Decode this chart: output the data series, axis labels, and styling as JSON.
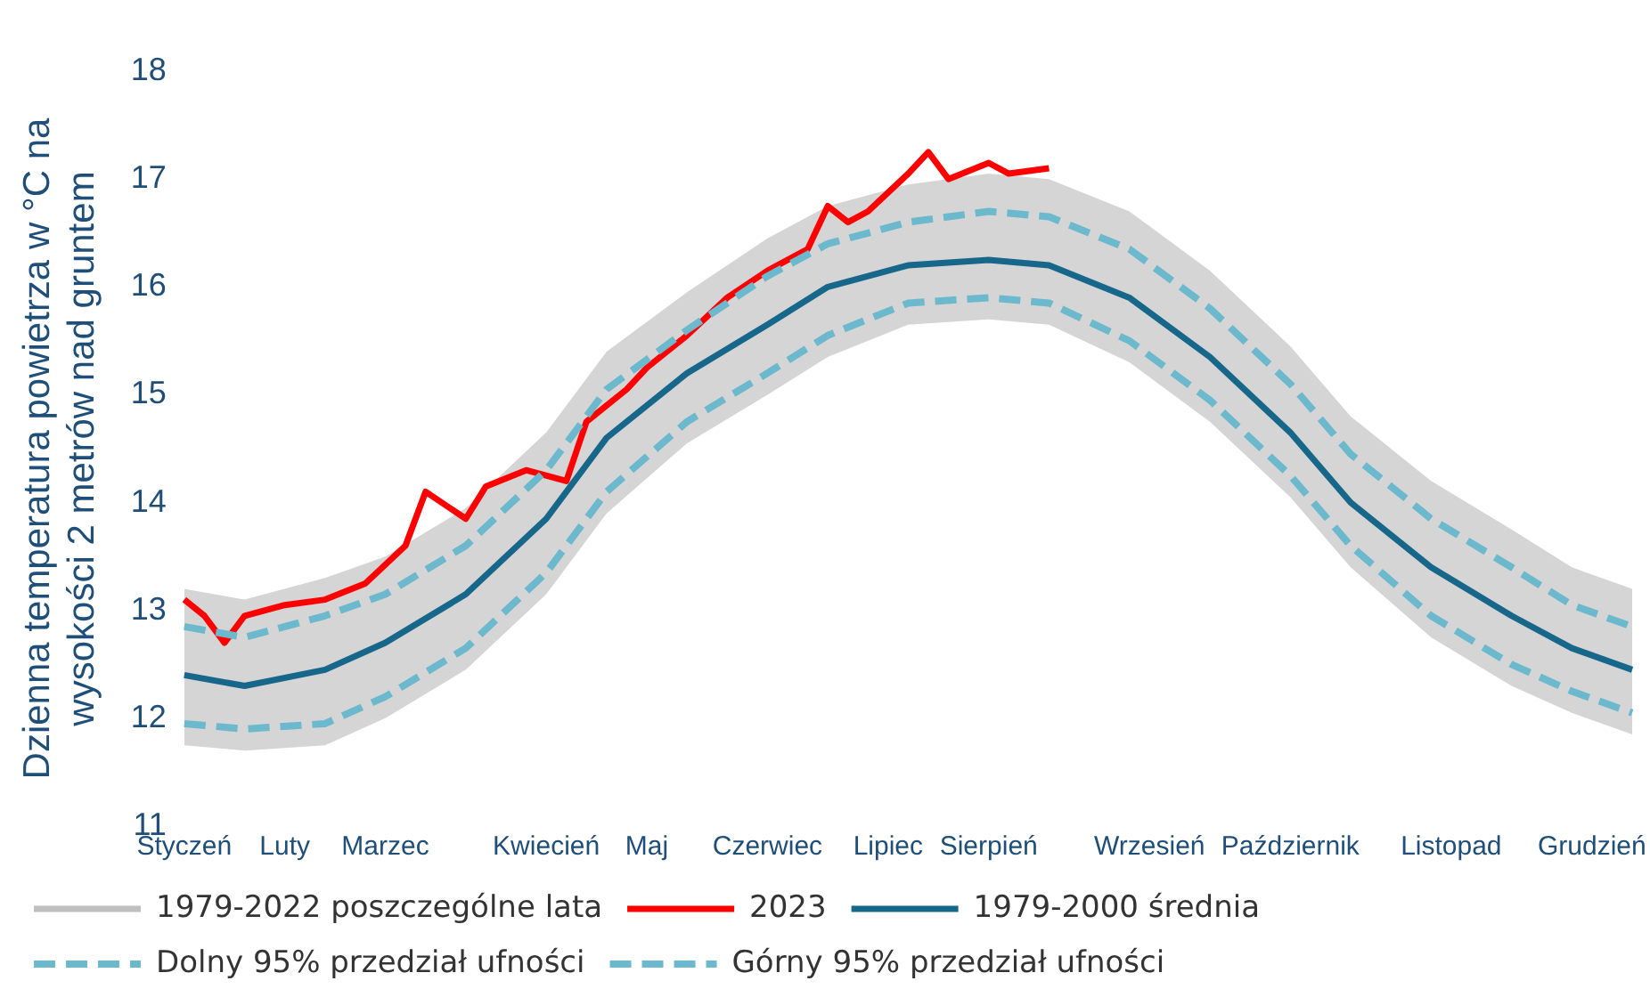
{
  "chart_data": {
    "type": "line",
    "ylabel": "Dzienna temperatura powietrza w °C na wysokości 2 metrów nad gruntem",
    "categories": [
      "Styczeń",
      null,
      null,
      null,
      null,
      "Luty",
      null,
      null,
      null,
      null,
      "Marzec",
      null,
      null,
      null,
      null,
      null,
      null,
      null,
      "Kwiecień",
      null,
      null,
      null,
      null,
      "Maj",
      null,
      null,
      null,
      null,
      null,
      "Czerwiec",
      null,
      null,
      null,
      null,
      null,
      "Lipiec",
      null,
      null,
      null,
      null,
      "Sierpień",
      null,
      null,
      null,
      null,
      null,
      null,
      null,
      "Wrzesień",
      null,
      null,
      null,
      null,
      null,
      null,
      "Październik",
      null,
      null,
      null,
      null,
      null,
      null,
      null,
      "Listopad",
      null,
      null,
      null,
      null,
      null,
      null,
      "Grudzień",
      null,
      null
    ],
    "ylim": [
      11,
      18
    ],
    "yticks": [
      11,
      12,
      13,
      14,
      15,
      16,
      17,
      18
    ],
    "grid": false,
    "legend": "bottom",
    "marker": "none",
    "series": [
      {
        "name": "1979-2022 poszczególne lata",
        "color": "#c0c0c0",
        "values": [
          null,
          null,
          null,
          null,
          null,
          null,
          null,
          null,
          null,
          null,
          null,
          null,
          null,
          null,
          null,
          null,
          null,
          null,
          null,
          null,
          null,
          null,
          null,
          null,
          null,
          null,
          null,
          null,
          null,
          null,
          null,
          null,
          null,
          null,
          null,
          null,
          null,
          null,
          null,
          null,
          null,
          null,
          null,
          null,
          null,
          null,
          null,
          null,
          null,
          null,
          null,
          null,
          null,
          null,
          null,
          null,
          null,
          null,
          null,
          null,
          null,
          null,
          null,
          null,
          null,
          null,
          null,
          null,
          null,
          null,
          null,
          null,
          null
        ],
        "lower": [
          11.75,
          null,
          null,
          11.7,
          null,
          null,
          null,
          11.75,
          null,
          null,
          12.0,
          null,
          null,
          null,
          12.45,
          null,
          null,
          null,
          13.15,
          null,
          null,
          13.9,
          null,
          null,
          null,
          14.55,
          null,
          null,
          null,
          15.0,
          null,
          null,
          15.35,
          null,
          null,
          null,
          15.65,
          null,
          null,
          null,
          15.7,
          null,
          null,
          15.65,
          null,
          null,
          null,
          15.3,
          null,
          null,
          null,
          14.75,
          null,
          null,
          null,
          14.05,
          null,
          null,
          13.4,
          null,
          null,
          null,
          12.75,
          null,
          null,
          null,
          12.3,
          null,
          null,
          12.05,
          null,
          null,
          11.85
        ],
        "upper": [
          13.2,
          null,
          null,
          13.1,
          null,
          null,
          null,
          13.3,
          null,
          null,
          13.5,
          null,
          null,
          null,
          13.95,
          null,
          null,
          null,
          14.65,
          null,
          null,
          15.4,
          null,
          null,
          null,
          15.95,
          null,
          null,
          null,
          16.45,
          null,
          null,
          16.75,
          null,
          null,
          null,
          16.95,
          null,
          null,
          null,
          17.05,
          null,
          null,
          17.0,
          null,
          null,
          null,
          16.7,
          null,
          null,
          null,
          16.15,
          null,
          null,
          null,
          15.45,
          null,
          null,
          14.8,
          null,
          null,
          null,
          14.2,
          null,
          null,
          null,
          13.75,
          null,
          null,
          13.4,
          null,
          null,
          13.2
        ]
      },
      {
        "name": "2023",
        "color": "#ff0000",
        "values": [
          13.1,
          12.95,
          12.7,
          12.95,
          null,
          13.05,
          null,
          13.1,
          null,
          13.25,
          null,
          13.6,
          14.1,
          null,
          13.85,
          14.15,
          null,
          14.3,
          null,
          14.2,
          14.75,
          null,
          15.05,
          15.25,
          null,
          15.55,
          null,
          15.9,
          null,
          16.15,
          null,
          16.35,
          16.75,
          16.6,
          16.7,
          null,
          17.05,
          17.25,
          17.0,
          null,
          17.15,
          17.05,
          null,
          17.1,
          null,
          null,
          null,
          null,
          null,
          null,
          null,
          null,
          null,
          null,
          null,
          null,
          null,
          null,
          null,
          null,
          null,
          null,
          null,
          null,
          null,
          null,
          null,
          null,
          null,
          null,
          null,
          null,
          null
        ]
      },
      {
        "name": "1979-2000 średnia",
        "color": "#17678a",
        "values": [
          12.4,
          null,
          null,
          12.3,
          null,
          null,
          null,
          12.45,
          null,
          null,
          12.7,
          null,
          null,
          null,
          13.15,
          null,
          null,
          null,
          13.85,
          null,
          null,
          14.6,
          null,
          null,
          null,
          15.2,
          null,
          null,
          null,
          15.65,
          null,
          null,
          16.0,
          null,
          null,
          null,
          16.2,
          null,
          null,
          null,
          16.25,
          null,
          null,
          16.2,
          null,
          null,
          null,
          15.9,
          null,
          null,
          null,
          15.35,
          null,
          null,
          null,
          14.65,
          null,
          null,
          14.0,
          null,
          null,
          null,
          13.4,
          null,
          null,
          null,
          12.95,
          null,
          null,
          12.65,
          null,
          null,
          12.45
        ]
      },
      {
        "name": "Dolny 95% przedział ufności",
        "color": "#6cb8cc",
        "line_style": "dashed",
        "values": [
          11.95,
          null,
          null,
          11.9,
          null,
          null,
          null,
          11.95,
          null,
          null,
          12.2,
          null,
          null,
          null,
          12.65,
          null,
          null,
          null,
          13.35,
          null,
          null,
          14.1,
          null,
          null,
          null,
          14.75,
          null,
          null,
          null,
          15.2,
          null,
          null,
          15.55,
          null,
          null,
          null,
          15.85,
          null,
          null,
          null,
          15.9,
          null,
          null,
          15.85,
          null,
          null,
          null,
          15.5,
          null,
          null,
          null,
          14.95,
          null,
          null,
          null,
          14.25,
          null,
          null,
          13.6,
          null,
          null,
          null,
          12.95,
          null,
          null,
          null,
          12.5,
          null,
          null,
          12.25,
          null,
          null,
          12.05
        ]
      },
      {
        "name": "Górny 95% przedział ufności",
        "color": "#6cb8cc",
        "line_style": "dashed",
        "values": [
          12.85,
          null,
          null,
          12.75,
          null,
          null,
          null,
          12.95,
          null,
          null,
          13.15,
          null,
          null,
          null,
          13.6,
          null,
          null,
          null,
          14.3,
          null,
          null,
          15.05,
          null,
          null,
          null,
          15.6,
          null,
          null,
          null,
          16.1,
          null,
          null,
          16.4,
          null,
          null,
          null,
          16.6,
          null,
          null,
          null,
          16.7,
          null,
          null,
          16.65,
          null,
          null,
          null,
          16.35,
          null,
          null,
          null,
          15.8,
          null,
          null,
          null,
          15.1,
          null,
          null,
          14.45,
          null,
          null,
          null,
          13.85,
          null,
          null,
          null,
          13.4,
          null,
          null,
          13.05,
          null,
          null,
          12.85
        ]
      }
    ]
  }
}
